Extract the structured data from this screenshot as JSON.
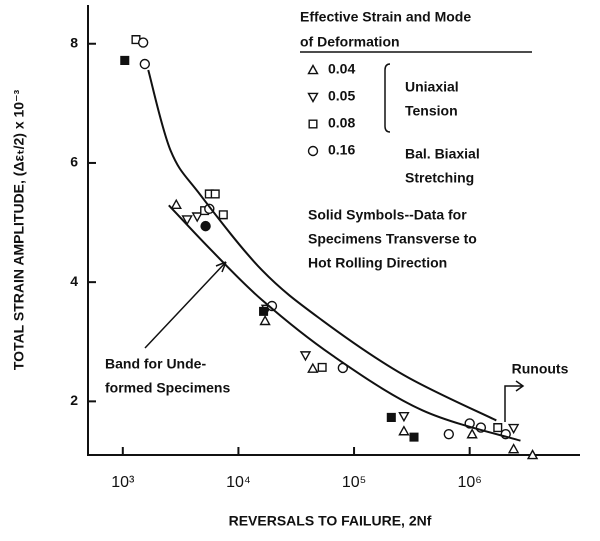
{
  "chart_data": {
    "type": "scatter",
    "x_label": "REVERSALS TO FAILURE, 2Nf",
    "y_label": "TOTAL STRAIN AMPLITUDE, (Δεₜ/2) x 10⁻³",
    "xscale": "log",
    "xlim": [
      500,
      9000000
    ],
    "ylim": [
      1.1,
      8.65
    ],
    "xticks": [
      {
        "value": 1000,
        "label": "10³"
      },
      {
        "value": 10000,
        "label": "10⁴"
      },
      {
        "value": 100000,
        "label": "10⁵"
      },
      {
        "value": 1000000,
        "label": "10⁶"
      }
    ],
    "yticks": [
      2,
      4,
      6,
      8
    ],
    "color": "#111111",
    "legend": {
      "title": [
        "Effective Strain and Mode",
        "of Deformation"
      ],
      "groups": [
        [
          "Uniaxial",
          "Tension"
        ],
        [
          "Bal. Biaxial",
          "Stretching"
        ]
      ]
    },
    "note": [
      "Solid Symbols--Data for",
      "Specimens Transverse to",
      "Hot Rolling Direction"
    ],
    "series": [
      {
        "name": "0.04",
        "marker": "triangle",
        "x": [
          2900,
          17000,
          44000,
          270000,
          1050000,
          2400000,
          3500000
        ],
        "y": [
          5.3,
          3.35,
          2.55,
          1.5,
          1.45,
          1.2,
          1.1
        ],
        "filled": [
          false,
          false,
          false,
          false,
          false,
          false,
          false
        ]
      },
      {
        "name": "0.05",
        "marker": "triangle-down",
        "x": [
          3600,
          4400,
          17500,
          38000,
          270000,
          2400000
        ],
        "y": [
          5.05,
          5.1,
          3.55,
          2.77,
          1.75,
          1.55
        ],
        "filled": [
          false,
          false,
          false,
          false,
          false,
          false
        ]
      },
      {
        "name": "0.08",
        "marker": "square",
        "x": [
          1300,
          1040,
          5600,
          6300,
          5100,
          7400,
          16500,
          53000,
          210000,
          330000,
          1750000
        ],
        "y": [
          8.07,
          7.72,
          5.48,
          5.48,
          5.2,
          5.13,
          3.51,
          2.57,
          1.73,
          1.4,
          1.56
        ],
        "filled": [
          false,
          true,
          false,
          false,
          false,
          false,
          true,
          false,
          true,
          true,
          false
        ]
      },
      {
        "name": "0.16",
        "marker": "circle",
        "x": [
          1500,
          1550,
          5600,
          5200,
          19500,
          80000,
          1000000,
          1250000,
          660000,
          2050000
        ],
        "y": [
          8.02,
          7.66,
          5.23,
          4.94,
          3.6,
          2.56,
          1.63,
          1.56,
          1.45,
          1.45
        ],
        "filled": [
          false,
          false,
          false,
          true,
          false,
          false,
          false,
          false,
          false,
          false
        ]
      }
    ],
    "band": {
      "label": [
        "Band for Unde-",
        "formed Specimens"
      ],
      "upper": {
        "x": [
          1660,
          2600,
          4700,
          16000,
          53000,
          270000,
          1700000
        ],
        "y": [
          7.56,
          6.2,
          5.46,
          4.2,
          3.36,
          2.44,
          1.68
        ]
      },
      "lower": {
        "x": [
          2500,
          5800,
          16000,
          65000,
          390000,
          2750000
        ],
        "y": [
          5.29,
          4.54,
          3.7,
          2.77,
          1.85,
          1.34
        ]
      }
    },
    "annotation": "Runouts"
  }
}
